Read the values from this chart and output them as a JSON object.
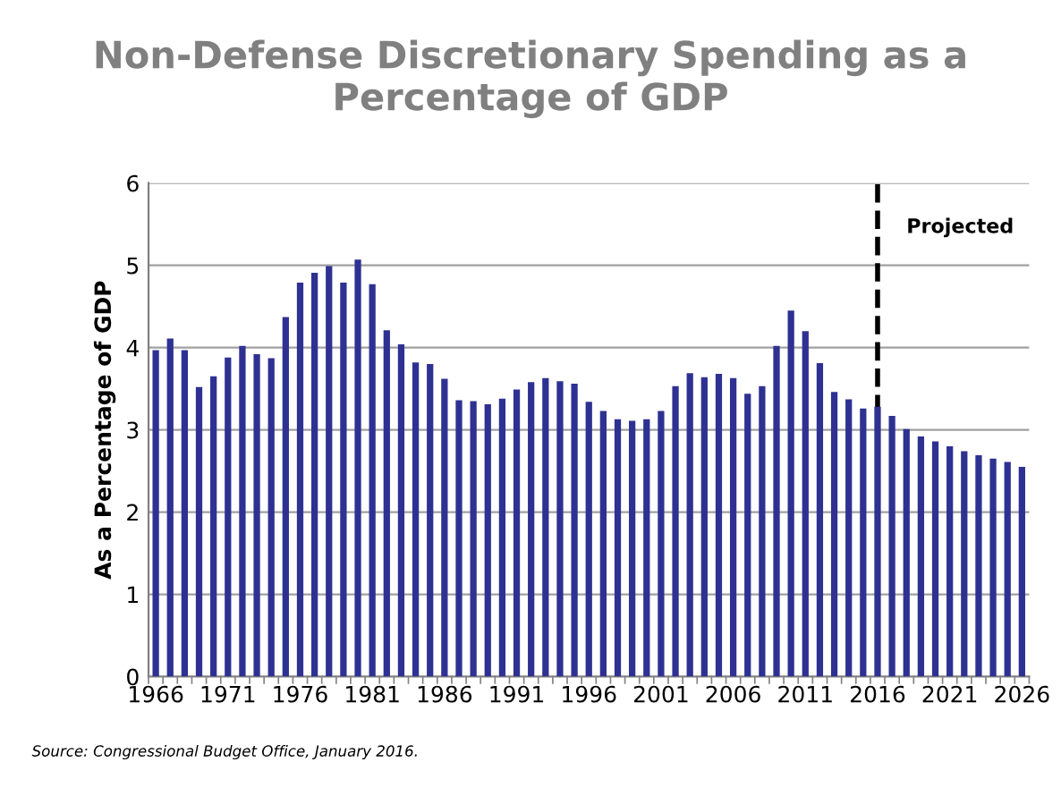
{
  "chart_data": {
    "type": "bar",
    "title": "Non-Defense Discretionary Spending as a\nPercentage of GDP",
    "ylabel": "As a Percentage of GDP",
    "categories": [
      "1966",
      null,
      null,
      null,
      null,
      "1971",
      null,
      null,
      null,
      null,
      "1976",
      null,
      null,
      null,
      null,
      "1981",
      null,
      null,
      null,
      null,
      "1986",
      null,
      null,
      null,
      null,
      "1991",
      null,
      null,
      null,
      null,
      "1996",
      null,
      null,
      null,
      null,
      "2001",
      null,
      null,
      null,
      null,
      "2006",
      null,
      null,
      null,
      null,
      "2011",
      null,
      null,
      null,
      null,
      "2016",
      null,
      null,
      null,
      null,
      "2021",
      null,
      null,
      null,
      null,
      "2026"
    ],
    "values": [
      3.97,
      4.11,
      3.97,
      3.52,
      3.65,
      3.88,
      4.02,
      3.92,
      3.87,
      4.37,
      4.79,
      4.91,
      4.99,
      4.79,
      5.07,
      4.77,
      4.21,
      4.04,
      3.82,
      3.8,
      3.62,
      3.36,
      3.35,
      3.31,
      3.38,
      3.49,
      3.58,
      3.63,
      3.59,
      3.56,
      3.34,
      3.23,
      3.13,
      3.11,
      3.13,
      3.23,
      3.53,
      3.69,
      3.64,
      3.68,
      3.63,
      3.44,
      3.53,
      4.02,
      4.45,
      4.2,
      3.81,
      3.46,
      3.37,
      3.26,
      3.28,
      3.17,
      3.01,
      2.92,
      2.86,
      2.8,
      2.74,
      2.69,
      2.65,
      2.61,
      2.55
    ],
    "color": "#2e3192",
    "ylim": [
      0,
      6
    ],
    "yticks": [
      0,
      1,
      2,
      3,
      4,
      5,
      6
    ],
    "grid": "y",
    "ref_lines": [
      {
        "axis": "x",
        "value": "2016",
        "label": "Projected",
        "color": "#000000",
        "line_style": "dashed"
      }
    ],
    "annotations": [
      "Source: Congressional Budget Office, January 2016."
    ]
  }
}
